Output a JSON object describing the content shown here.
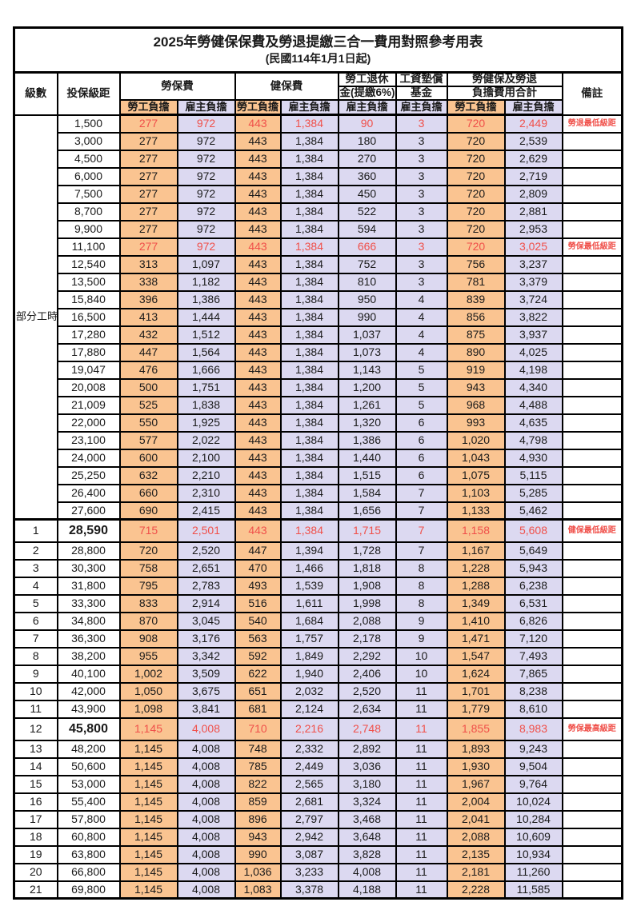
{
  "title": "2025年勞健保保費及勞退提繳三合一費用對照參考用表",
  "subtitle": "(民國114年1月1日起)",
  "columns": {
    "level": "級數",
    "salary": "投保級距",
    "labor_fee": "勞保費",
    "health_fee": "健保費",
    "pension_line1": "勞工退休",
    "pension_line2": "金(提繳6%)",
    "wage_fund_line1": "工資墊償",
    "wage_fund_line2": "基金",
    "total_line1": "勞健保及勞退",
    "total_line2": "負擔費用合計",
    "remark": "備註",
    "employee_share": "勞工負擔",
    "employer_share": "雇主負擔"
  },
  "part_time_label": "部分工時",
  "part_time_rowspan": 23,
  "colors": {
    "employee_bg": "#FAC491",
    "employer_bg": "#DCD9F1",
    "highlight_text": "#F0504A",
    "border": "#000000"
  },
  "rows": [
    {
      "level": "",
      "salary": "1,500",
      "values": [
        "277",
        "972",
        "443",
        "1,384",
        "90",
        "3",
        "720",
        "2,449"
      ],
      "remark": "勞退最低級距",
      "highlight": true,
      "bold_salary": false,
      "tall": false,
      "section_start": false
    },
    {
      "level": "",
      "salary": "3,000",
      "values": [
        "277",
        "972",
        "443",
        "1,384",
        "180",
        "3",
        "720",
        "2,539"
      ],
      "remark": "",
      "highlight": false,
      "bold_salary": false,
      "tall": false,
      "section_start": false
    },
    {
      "level": "",
      "salary": "4,500",
      "values": [
        "277",
        "972",
        "443",
        "1,384",
        "270",
        "3",
        "720",
        "2,629"
      ],
      "remark": "",
      "highlight": false,
      "bold_salary": false,
      "tall": false,
      "section_start": false
    },
    {
      "level": "",
      "salary": "6,000",
      "values": [
        "277",
        "972",
        "443",
        "1,384",
        "360",
        "3",
        "720",
        "2,719"
      ],
      "remark": "",
      "highlight": false,
      "bold_salary": false,
      "tall": false,
      "section_start": false
    },
    {
      "level": "",
      "salary": "7,500",
      "values": [
        "277",
        "972",
        "443",
        "1,384",
        "450",
        "3",
        "720",
        "2,809"
      ],
      "remark": "",
      "highlight": false,
      "bold_salary": false,
      "tall": false,
      "section_start": false
    },
    {
      "level": "",
      "salary": "8,700",
      "values": [
        "277",
        "972",
        "443",
        "1,384",
        "522",
        "3",
        "720",
        "2,881"
      ],
      "remark": "",
      "highlight": false,
      "bold_salary": false,
      "tall": false,
      "section_start": false
    },
    {
      "level": "",
      "salary": "9,900",
      "values": [
        "277",
        "972",
        "443",
        "1,384",
        "594",
        "3",
        "720",
        "2,953"
      ],
      "remark": "",
      "highlight": false,
      "bold_salary": false,
      "tall": false,
      "section_start": false
    },
    {
      "level": "",
      "salary": "11,100",
      "values": [
        "277",
        "972",
        "443",
        "1,384",
        "666",
        "3",
        "720",
        "3,025"
      ],
      "remark": "勞保最低級距",
      "highlight": true,
      "bold_salary": false,
      "tall": false,
      "section_start": false
    },
    {
      "level": "",
      "salary": "12,540",
      "values": [
        "313",
        "1,097",
        "443",
        "1,384",
        "752",
        "3",
        "756",
        "3,237"
      ],
      "remark": "",
      "highlight": false,
      "bold_salary": false,
      "tall": false,
      "section_start": false
    },
    {
      "level": "",
      "salary": "13,500",
      "values": [
        "338",
        "1,182",
        "443",
        "1,384",
        "810",
        "3",
        "781",
        "3,379"
      ],
      "remark": "",
      "highlight": false,
      "bold_salary": false,
      "tall": false,
      "section_start": false
    },
    {
      "level": "",
      "salary": "15,840",
      "values": [
        "396",
        "1,386",
        "443",
        "1,384",
        "950",
        "4",
        "839",
        "3,724"
      ],
      "remark": "",
      "highlight": false,
      "bold_salary": false,
      "tall": false,
      "section_start": false
    },
    {
      "level": "",
      "salary": "16,500",
      "values": [
        "413",
        "1,444",
        "443",
        "1,384",
        "990",
        "4",
        "856",
        "3,822"
      ],
      "remark": "",
      "highlight": false,
      "bold_salary": false,
      "tall": false,
      "section_start": false
    },
    {
      "level": "",
      "salary": "17,280",
      "values": [
        "432",
        "1,512",
        "443",
        "1,384",
        "1,037",
        "4",
        "875",
        "3,937"
      ],
      "remark": "",
      "highlight": false,
      "bold_salary": false,
      "tall": false,
      "section_start": false
    },
    {
      "level": "",
      "salary": "17,880",
      "values": [
        "447",
        "1,564",
        "443",
        "1,384",
        "1,073",
        "4",
        "890",
        "4,025"
      ],
      "remark": "",
      "highlight": false,
      "bold_salary": false,
      "tall": false,
      "section_start": false
    },
    {
      "level": "",
      "salary": "19,047",
      "values": [
        "476",
        "1,666",
        "443",
        "1,384",
        "1,143",
        "5",
        "919",
        "4,198"
      ],
      "remark": "",
      "highlight": false,
      "bold_salary": false,
      "tall": false,
      "section_start": false
    },
    {
      "level": "",
      "salary": "20,008",
      "values": [
        "500",
        "1,751",
        "443",
        "1,384",
        "1,200",
        "5",
        "943",
        "4,340"
      ],
      "remark": "",
      "highlight": false,
      "bold_salary": false,
      "tall": false,
      "section_start": false
    },
    {
      "level": "",
      "salary": "21,009",
      "values": [
        "525",
        "1,838",
        "443",
        "1,384",
        "1,261",
        "5",
        "968",
        "4,488"
      ],
      "remark": "",
      "highlight": false,
      "bold_salary": false,
      "tall": false,
      "section_start": false
    },
    {
      "level": "",
      "salary": "22,000",
      "values": [
        "550",
        "1,925",
        "443",
        "1,384",
        "1,320",
        "6",
        "993",
        "4,635"
      ],
      "remark": "",
      "highlight": false,
      "bold_salary": false,
      "tall": false,
      "section_start": false
    },
    {
      "level": "",
      "salary": "23,100",
      "values": [
        "577",
        "2,022",
        "443",
        "1,384",
        "1,386",
        "6",
        "1,020",
        "4,798"
      ],
      "remark": "",
      "highlight": false,
      "bold_salary": false,
      "tall": false,
      "section_start": false
    },
    {
      "level": "",
      "salary": "24,000",
      "values": [
        "600",
        "2,100",
        "443",
        "1,384",
        "1,440",
        "6",
        "1,043",
        "4,930"
      ],
      "remark": "",
      "highlight": false,
      "bold_salary": false,
      "tall": false,
      "section_start": false
    },
    {
      "level": "",
      "salary": "25,250",
      "values": [
        "632",
        "2,210",
        "443",
        "1,384",
        "1,515",
        "6",
        "1,075",
        "5,115"
      ],
      "remark": "",
      "highlight": false,
      "bold_salary": false,
      "tall": false,
      "section_start": false
    },
    {
      "level": "",
      "salary": "26,400",
      "values": [
        "660",
        "2,310",
        "443",
        "1,384",
        "1,584",
        "7",
        "1,103",
        "5,285"
      ],
      "remark": "",
      "highlight": false,
      "bold_salary": false,
      "tall": false,
      "section_start": false
    },
    {
      "level": "",
      "salary": "27,600",
      "values": [
        "690",
        "2,415",
        "443",
        "1,384",
        "1,656",
        "7",
        "1,133",
        "5,462"
      ],
      "remark": "",
      "highlight": false,
      "bold_salary": false,
      "tall": false,
      "section_start": false
    },
    {
      "level": "1",
      "salary": "28,590",
      "values": [
        "715",
        "2,501",
        "443",
        "1,384",
        "1,715",
        "7",
        "1,158",
        "5,608"
      ],
      "remark": "健保最低級距",
      "highlight": true,
      "bold_salary": true,
      "tall": true,
      "section_start": true
    },
    {
      "level": "2",
      "salary": "28,800",
      "values": [
        "720",
        "2,520",
        "447",
        "1,394",
        "1,728",
        "7",
        "1,167",
        "5,649"
      ],
      "remark": "",
      "highlight": false,
      "bold_salary": false,
      "tall": false,
      "section_start": false
    },
    {
      "level": "3",
      "salary": "30,300",
      "values": [
        "758",
        "2,651",
        "470",
        "1,466",
        "1,818",
        "8",
        "1,228",
        "5,943"
      ],
      "remark": "",
      "highlight": false,
      "bold_salary": false,
      "tall": false,
      "section_start": false
    },
    {
      "level": "4",
      "salary": "31,800",
      "values": [
        "795",
        "2,783",
        "493",
        "1,539",
        "1,908",
        "8",
        "1,288",
        "6,238"
      ],
      "remark": "",
      "highlight": false,
      "bold_salary": false,
      "tall": false,
      "section_start": false
    },
    {
      "level": "5",
      "salary": "33,300",
      "values": [
        "833",
        "2,914",
        "516",
        "1,611",
        "1,998",
        "8",
        "1,349",
        "6,531"
      ],
      "remark": "",
      "highlight": false,
      "bold_salary": false,
      "tall": false,
      "section_start": false
    },
    {
      "level": "6",
      "salary": "34,800",
      "values": [
        "870",
        "3,045",
        "540",
        "1,684",
        "2,088",
        "9",
        "1,410",
        "6,826"
      ],
      "remark": "",
      "highlight": false,
      "bold_salary": false,
      "tall": false,
      "section_start": false
    },
    {
      "level": "7",
      "salary": "36,300",
      "values": [
        "908",
        "3,176",
        "563",
        "1,757",
        "2,178",
        "9",
        "1,471",
        "7,120"
      ],
      "remark": "",
      "highlight": false,
      "bold_salary": false,
      "tall": false,
      "section_start": false
    },
    {
      "level": "8",
      "salary": "38,200",
      "values": [
        "955",
        "3,342",
        "592",
        "1,849",
        "2,292",
        "10",
        "1,547",
        "7,493"
      ],
      "remark": "",
      "highlight": false,
      "bold_salary": false,
      "tall": false,
      "section_start": false
    },
    {
      "level": "9",
      "salary": "40,100",
      "values": [
        "1,002",
        "3,509",
        "622",
        "1,940",
        "2,406",
        "10",
        "1,624",
        "7,865"
      ],
      "remark": "",
      "highlight": false,
      "bold_salary": false,
      "tall": false,
      "section_start": false
    },
    {
      "level": "10",
      "salary": "42,000",
      "values": [
        "1,050",
        "3,675",
        "651",
        "2,032",
        "2,520",
        "11",
        "1,701",
        "8,238"
      ],
      "remark": "",
      "highlight": false,
      "bold_salary": false,
      "tall": false,
      "section_start": false
    },
    {
      "level": "11",
      "salary": "43,900",
      "values": [
        "1,098",
        "3,841",
        "681",
        "2,124",
        "2,634",
        "11",
        "1,779",
        "8,610"
      ],
      "remark": "",
      "highlight": false,
      "bold_salary": false,
      "tall": false,
      "section_start": false
    },
    {
      "level": "12",
      "salary": "45,800",
      "values": [
        "1,145",
        "4,008",
        "710",
        "2,216",
        "2,748",
        "11",
        "1,855",
        "8,983"
      ],
      "remark": "勞保最高級距",
      "highlight": true,
      "bold_salary": true,
      "tall": true,
      "section_start": false
    },
    {
      "level": "13",
      "salary": "48,200",
      "values": [
        "1,145",
        "4,008",
        "748",
        "2,332",
        "2,892",
        "11",
        "1,893",
        "9,243"
      ],
      "remark": "",
      "highlight": false,
      "bold_salary": false,
      "tall": false,
      "section_start": false
    },
    {
      "level": "14",
      "salary": "50,600",
      "values": [
        "1,145",
        "4,008",
        "785",
        "2,449",
        "3,036",
        "11",
        "1,930",
        "9,504"
      ],
      "remark": "",
      "highlight": false,
      "bold_salary": false,
      "tall": false,
      "section_start": false
    },
    {
      "level": "15",
      "salary": "53,000",
      "values": [
        "1,145",
        "4,008",
        "822",
        "2,565",
        "3,180",
        "11",
        "1,967",
        "9,764"
      ],
      "remark": "",
      "highlight": false,
      "bold_salary": false,
      "tall": false,
      "section_start": false
    },
    {
      "level": "16",
      "salary": "55,400",
      "values": [
        "1,145",
        "4,008",
        "859",
        "2,681",
        "3,324",
        "11",
        "2,004",
        "10,024"
      ],
      "remark": "",
      "highlight": false,
      "bold_salary": false,
      "tall": false,
      "section_start": false
    },
    {
      "level": "17",
      "salary": "57,800",
      "values": [
        "1,145",
        "4,008",
        "896",
        "2,797",
        "3,468",
        "11",
        "2,041",
        "10,284"
      ],
      "remark": "",
      "highlight": false,
      "bold_salary": false,
      "tall": false,
      "section_start": false
    },
    {
      "level": "18",
      "salary": "60,800",
      "values": [
        "1,145",
        "4,008",
        "943",
        "2,942",
        "3,648",
        "11",
        "2,088",
        "10,609"
      ],
      "remark": "",
      "highlight": false,
      "bold_salary": false,
      "tall": false,
      "section_start": false
    },
    {
      "level": "19",
      "salary": "63,800",
      "values": [
        "1,145",
        "4,008",
        "990",
        "3,087",
        "3,828",
        "11",
        "2,135",
        "10,934"
      ],
      "remark": "",
      "highlight": false,
      "bold_salary": false,
      "tall": false,
      "section_start": false
    },
    {
      "level": "20",
      "salary": "66,800",
      "values": [
        "1,145",
        "4,008",
        "1,036",
        "3,233",
        "4,008",
        "11",
        "2,181",
        "11,260"
      ],
      "remark": "",
      "highlight": false,
      "bold_salary": false,
      "tall": false,
      "section_start": false
    },
    {
      "level": "21",
      "salary": "69,800",
      "values": [
        "1,145",
        "4,008",
        "1,083",
        "3,378",
        "4,188",
        "11",
        "2,228",
        "11,585"
      ],
      "remark": "",
      "highlight": false,
      "bold_salary": false,
      "tall": false,
      "section_start": false
    }
  ]
}
